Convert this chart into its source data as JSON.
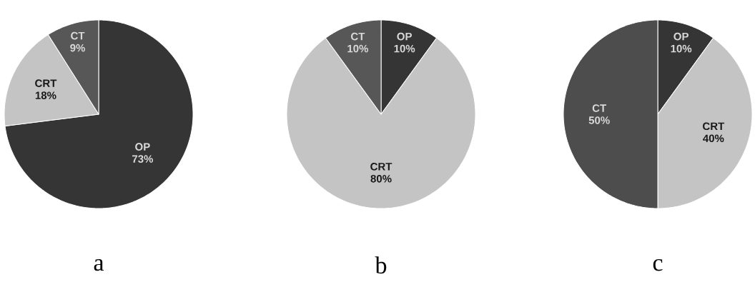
{
  "chart_data": [
    {
      "type": "pie",
      "title": "a",
      "categories": [
        "OP",
        "CRT",
        "CT"
      ],
      "values": [
        73,
        18,
        9
      ],
      "value_labels": [
        "73%",
        "18%",
        "9%"
      ],
      "colors": [
        "#353535",
        "#c4c4c4",
        "#575757"
      ]
    },
    {
      "type": "pie",
      "title": "b",
      "categories": [
        "OP",
        "CRT",
        "CT"
      ],
      "values": [
        10,
        80,
        10
      ],
      "value_labels": [
        "10%",
        "80%",
        "10%"
      ],
      "colors": [
        "#353535",
        "#c4c4c4",
        "#575757"
      ]
    },
    {
      "type": "pie",
      "title": "c",
      "categories": [
        "OP",
        "CRT",
        "CT"
      ],
      "values": [
        10,
        40,
        50
      ],
      "value_labels": [
        "10%",
        "40%",
        "50%"
      ],
      "colors": [
        "#353535",
        "#c4c4c4",
        "#4d4d4d"
      ]
    }
  ]
}
